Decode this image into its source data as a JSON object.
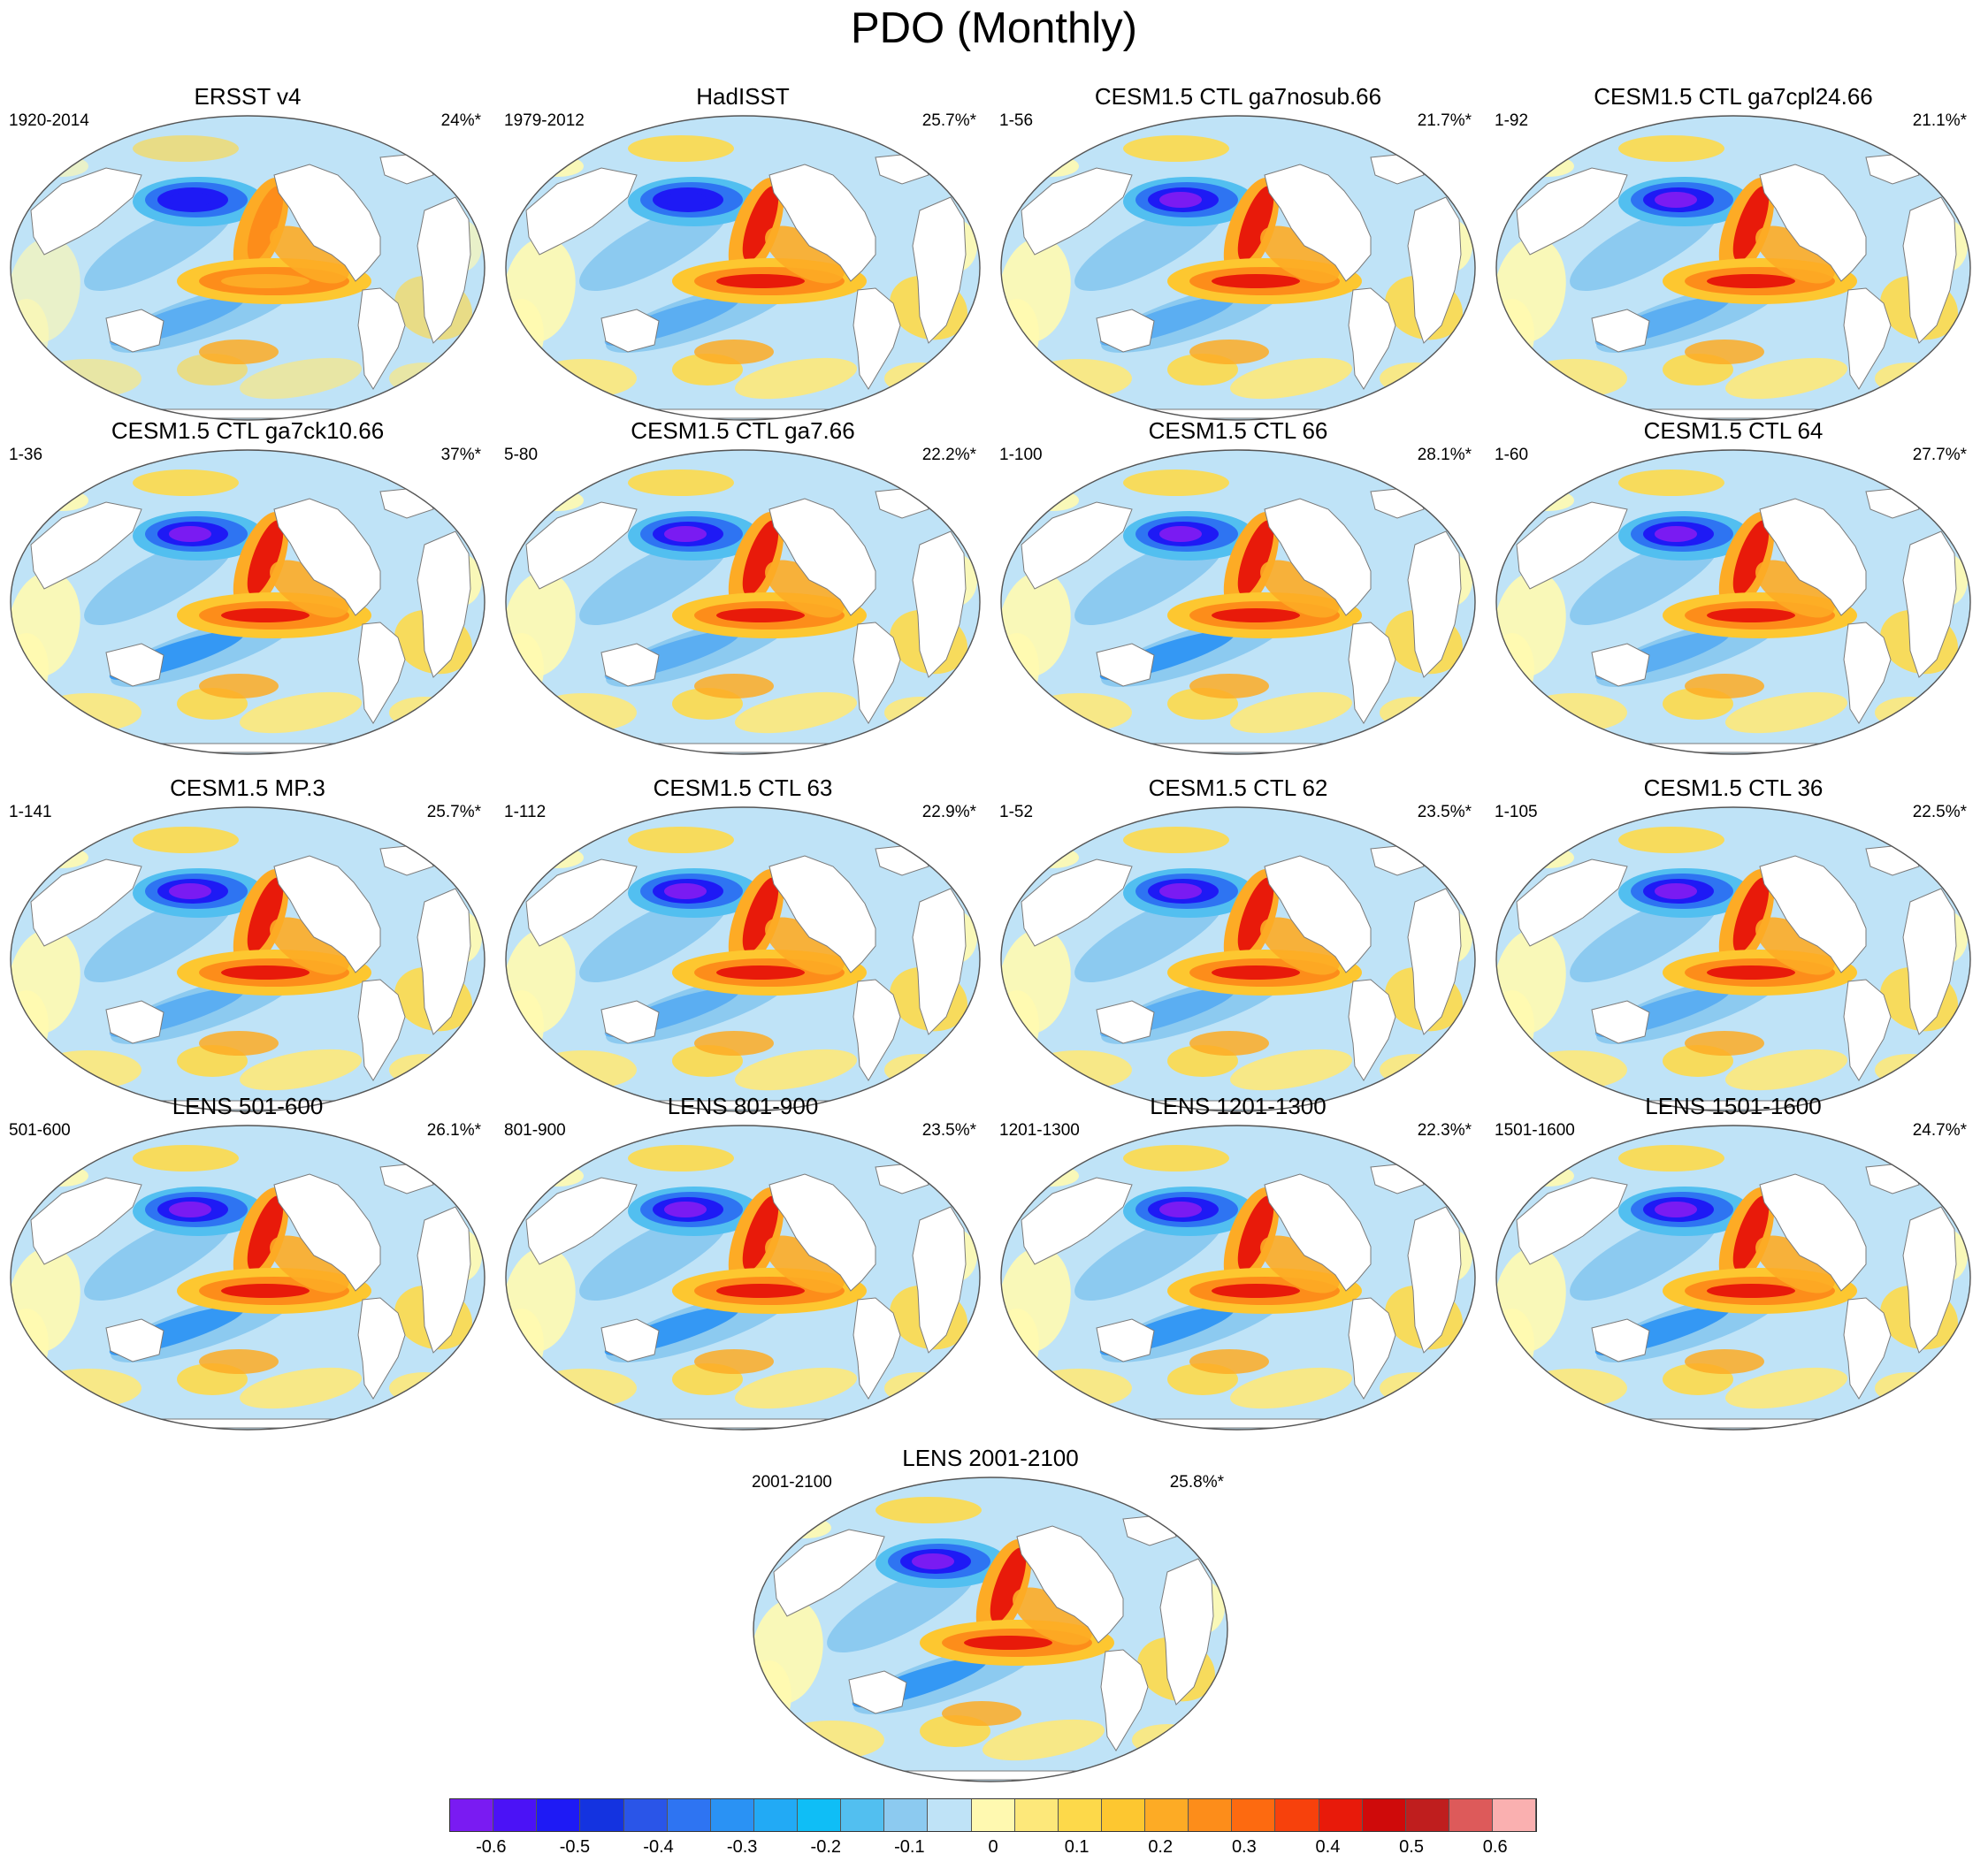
{
  "title": "PDO (Monthly)",
  "panels": [
    {
      "title": "ERSST v4",
      "period": "1920-2014",
      "percent": "24%*",
      "variant": "obs"
    },
    {
      "title": "HadISST",
      "period": "1979-2012",
      "percent": "25.7%*",
      "variant": "obs2"
    },
    {
      "title": "CESM1.5 CTL ga7nosub.66",
      "period": "1-56",
      "percent": "21.7%*",
      "variant": "model"
    },
    {
      "title": "CESM1.5 CTL ga7cpl24.66",
      "period": "1-92",
      "percent": "21.1%*",
      "variant": "model"
    },
    {
      "title": "CESM1.5 CTL ga7ck10.66",
      "period": "1-36",
      "percent": "37%*",
      "variant": "strong"
    },
    {
      "title": "CESM1.5 CTL ga7.66",
      "period": "5-80",
      "percent": "22.2%*",
      "variant": "model"
    },
    {
      "title": "CESM1.5 CTL 66",
      "period": "1-100",
      "percent": "28.1%*",
      "variant": "strong"
    },
    {
      "title": "CESM1.5 CTL 64",
      "period": "1-60",
      "percent": "27.7%*",
      "variant": "model"
    },
    {
      "title": "CESM1.5 MP.3",
      "period": "1-141",
      "percent": "25.7%*",
      "variant": "model"
    },
    {
      "title": "CESM1.5 CTL 63",
      "period": "1-112",
      "percent": "22.9%*",
      "variant": "model"
    },
    {
      "title": "CESM1.5 CTL 62",
      "period": "1-52",
      "percent": "23.5%*",
      "variant": "model"
    },
    {
      "title": "CESM1.5 CTL 36",
      "period": "1-105",
      "percent": "22.5%*",
      "variant": "model"
    },
    {
      "title": "LENS 501-600",
      "period": "501-600",
      "percent": "26.1%*",
      "variant": "lens"
    },
    {
      "title": "LENS 801-900",
      "period": "801-900",
      "percent": "23.5%*",
      "variant": "lens"
    },
    {
      "title": "LENS 1201-1300",
      "period": "1201-1300",
      "percent": "22.3%*",
      "variant": "lens"
    },
    {
      "title": "LENS 1501-1600",
      "period": "1501-1600",
      "percent": "24.7%*",
      "variant": "lens"
    },
    {
      "title": "LENS 2001-2100",
      "period": "2001-2100",
      "percent": "25.8%*",
      "variant": "lens"
    }
  ],
  "colorbar": {
    "colors": [
      "#7a1bf2",
      "#4b12f6",
      "#1e1af5",
      "#1433e0",
      "#2a55e8",
      "#2e74f2",
      "#2a92f4",
      "#22aaf5",
      "#0fbef6",
      "#52bff0",
      "#8ccaf0",
      "#bfe3f7",
      "#fff9b0",
      "#fde87a",
      "#fdd94a",
      "#fdc730",
      "#fdab25",
      "#fd8d1a",
      "#fd6a10",
      "#f7410c",
      "#e81a0a",
      "#cf0a0a",
      "#bf1e1e",
      "#dd5a5a",
      "#fab0b0"
    ],
    "labels": [
      "-0.6",
      "-0.5",
      "-0.4",
      "-0.3",
      "-0.2",
      "-0.1",
      "0",
      "0.1",
      "0.2",
      "0.3",
      "0.4",
      "0.5",
      "0.6"
    ],
    "range": [
      -0.65,
      0.65
    ]
  }
}
